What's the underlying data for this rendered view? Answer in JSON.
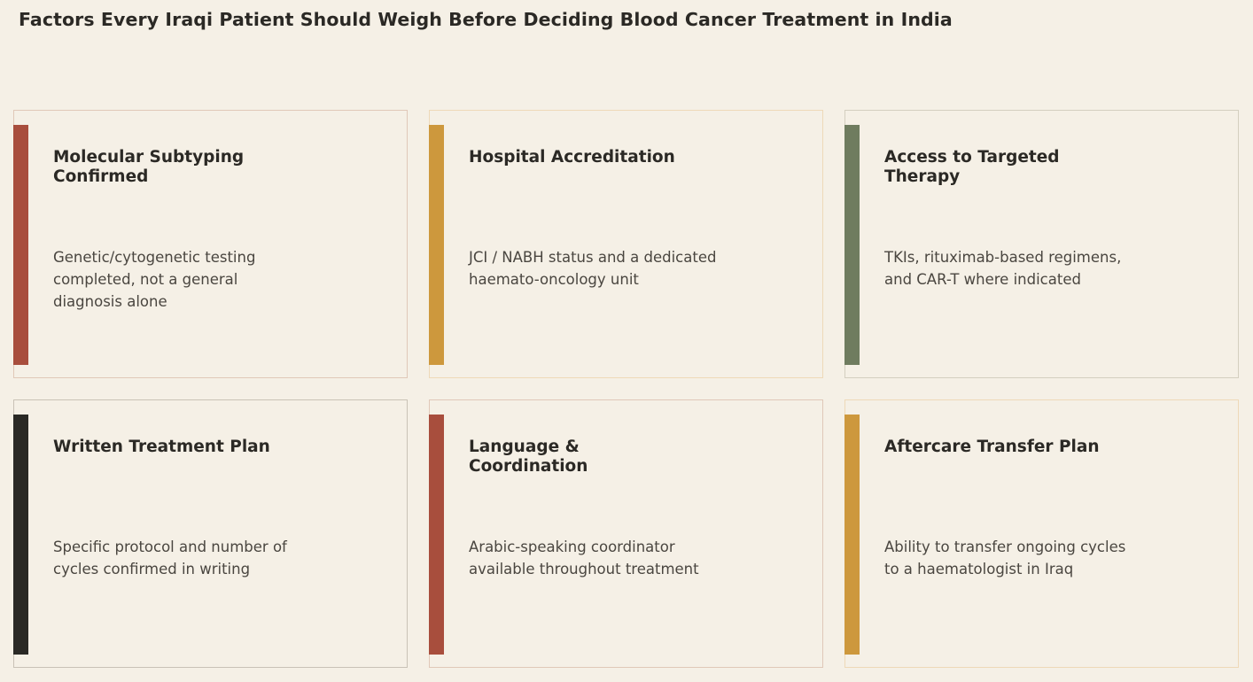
{
  "title": "Factors Every Iraqi Patient Should Weigh Before Deciding Blood Cancer Treatment in India",
  "factors": [
    {
      "title": "Molecular Subtyping Confirmed",
      "description": "Genetic/cytogenetic testing completed, not a general diagnosis alone",
      "accent": "#a84e3d",
      "border": "#e0c8b8"
    },
    {
      "title": "Hospital Accreditation",
      "description": "JCI / NABH status and a dedicated haemato-oncology unit",
      "accent": "#cd983d",
      "border": "#eed9b8"
    },
    {
      "title": "Access to Targeted Therapy",
      "description": "TKIs, rituximab-based regimens, and CAR-T where indicated",
      "accent": "#6f7c5f",
      "border": "#d4cfc0"
    },
    {
      "title": "Written Treatment Plan",
      "description": "Specific protocol and number of cycles confirmed in writing",
      "accent": "#2a2925",
      "border": "#c9c2b6"
    },
    {
      "title": "Language & Coordination",
      "description": "Arabic-speaking coordinator available throughout treatment",
      "accent": "#a84e3d",
      "border": "#e0c8b8"
    },
    {
      "title": "Aftercare Transfer Plan",
      "description": "Ability to transfer ongoing cycles to a haematologist in Iraq",
      "accent": "#cd983d",
      "border": "#eed9b8"
    }
  ]
}
